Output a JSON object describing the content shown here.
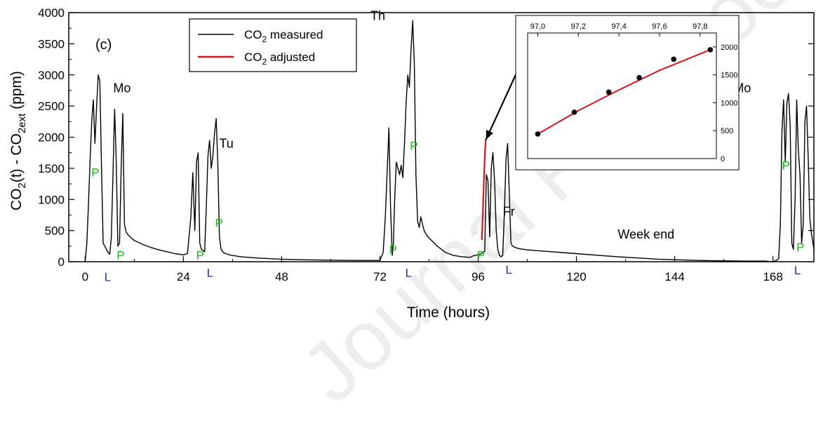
{
  "watermark": "Journal Pre-proof",
  "chart_data": [
    {
      "type": "line",
      "panel_label": "(c)",
      "xlabel": "Time (hours)",
      "ylabel_parts": [
        "CO",
        "2",
        "(t) - CO",
        "2ext",
        " (ppm)"
      ],
      "x_ticks": [
        0,
        24,
        48,
        72,
        96,
        120,
        144,
        168
      ],
      "y_ticks": [
        0,
        500,
        1000,
        1500,
        2000,
        2500,
        3000,
        3500,
        4000
      ],
      "xlim": [
        -4,
        178
      ],
      "ylim": [
        0,
        4000
      ],
      "legend": {
        "position": "top-center",
        "entries": [
          {
            "parts": [
              "CO",
              "2",
              " measured"
            ],
            "color": "#000000"
          },
          {
            "parts": [
              "CO",
              "2",
              " adjusted"
            ],
            "color": "#d4141e"
          }
        ]
      },
      "day_labels": [
        {
          "text": "Mo",
          "x": 9,
          "y": 2720
        },
        {
          "text": "Tu",
          "x": 34.5,
          "y": 1830
        },
        {
          "text": "Th",
          "x": 71.5,
          "y": 3880
        },
        {
          "text": "Fr",
          "x": 103.5,
          "y": 740
        },
        {
          "text": "Week end",
          "x": 137,
          "y": 370
        },
        {
          "text": "Mo",
          "x": 160.5,
          "y": 2720
        }
      ],
      "P_markers": [
        {
          "x": 2.5,
          "y": 1370
        },
        {
          "x": 8.7,
          "y": 40
        },
        {
          "x": 28.1,
          "y": 40
        },
        {
          "x": 32.7,
          "y": 560
        },
        {
          "x": 75.2,
          "y": 130
        },
        {
          "x": 80.3,
          "y": 1800
        },
        {
          "x": 96.7,
          "y": 40
        },
        {
          "x": 171.2,
          "y": 1480
        },
        {
          "x": 174.7,
          "y": 170
        }
      ],
      "L_markers": [
        {
          "x": 5.5,
          "y": -310
        },
        {
          "x": 30.5,
          "y": -240
        },
        {
          "x": 79,
          "y": -240
        },
        {
          "x": 103.5,
          "y": -190
        },
        {
          "x": 174,
          "y": -200
        }
      ],
      "marker_colors": {
        "P": "#21b021",
        "L": "#1f2ea0"
      },
      "series": [
        {
          "name": "CO2 measured",
          "color": "#000000",
          "x": [
            0,
            0.4,
            0.8,
            1.2,
            1.6,
            2.0,
            2.4,
            2.8,
            3.2,
            3.6,
            4.0,
            4.4,
            4.8,
            5.2,
            5.6,
            6.0,
            6.4,
            6.8,
            7.2,
            7.6,
            8.0,
            8.4,
            8.8,
            9.2,
            9.6,
            10,
            10.5,
            11,
            11.5,
            12,
            14,
            16,
            18,
            20,
            22,
            24,
            25,
            25.8,
            26.3,
            26.8,
            27.2,
            27.6,
            28.0,
            28.4,
            28.8,
            29.2,
            29.6,
            30.0,
            30.4,
            30.8,
            31.2,
            31.6,
            32.0,
            32.4,
            32.8,
            33.2,
            33.6,
            34.0,
            34.4,
            34.8,
            35.2,
            36,
            38,
            42,
            48,
            54,
            60,
            66,
            70,
            72,
            72.8,
            73.3,
            73.8,
            74.2,
            74.6,
            75.0,
            75.3,
            75.6,
            76.0,
            76.4,
            76.8,
            77.2,
            77.6,
            78.0,
            78.4,
            78.8,
            79.2,
            79.6,
            80.0,
            80.4,
            80.8,
            81.2,
            81.6,
            82.0,
            82.4,
            82.8,
            83.2,
            84,
            86,
            88,
            90,
            92,
            94,
            95,
            96,
            96.8,
            97.6,
            98.0,
            98.4,
            98.8,
            99.2,
            99.6,
            100.0,
            100.4,
            100.8,
            101.2,
            101.6,
            102.0,
            102.4,
            102.8,
            103.2,
            103.6,
            104.0,
            104.4,
            105,
            106,
            108,
            112,
            120,
            130,
            140,
            150,
            160,
            166,
            168,
            168.8,
            169.4,
            169.8,
            170.2,
            170.6,
            171.0,
            171.4,
            171.8,
            172.2,
            172.6,
            173.0,
            173.4,
            173.8,
            174.2,
            174.6,
            175.0,
            175.4,
            175.8,
            176.2,
            176.6,
            177.0,
            177.4,
            178
          ],
          "y": [
            0,
            280,
            900,
            1600,
            2250,
            2600,
            1900,
            2500,
            3000,
            2900,
            1500,
            300,
            250,
            200,
            150,
            120,
            400,
            1400,
            2450,
            1600,
            250,
            300,
            1500,
            2380,
            600,
            480,
            430,
            400,
            370,
            340,
            280,
            230,
            190,
            160,
            130,
            110,
            130,
            700,
            1430,
            500,
            1600,
            1750,
            300,
            200,
            180,
            160,
            900,
            1700,
            1950,
            1500,
            1700,
            2050,
            2300,
            1600,
            400,
            200,
            160,
            140,
            130,
            120,
            110,
            100,
            80,
            60,
            40,
            30,
            25,
            20,
            20,
            20,
            150,
            700,
            1500,
            2150,
            900,
            100,
            300,
            1000,
            1600,
            1500,
            1400,
            1550,
            1350,
            1900,
            2550,
            3000,
            2800,
            3400,
            3870,
            3200,
            1400,
            650,
            550,
            720,
            600,
            500,
            450,
            380,
            250,
            150,
            100,
            80,
            70,
            100,
            110,
            130,
            170,
            1400,
            1300,
            400,
            1500,
            1750,
            1300,
            500,
            200,
            100,
            80,
            100,
            800,
            1650,
            1900,
            1100,
            300,
            250,
            230,
            210,
            190,
            170,
            130,
            80,
            40,
            20,
            10,
            10,
            0,
            20,
            50,
            600,
            2100,
            2600,
            1600,
            2550,
            2700,
            2200,
            300,
            200,
            1000,
            2600,
            1800,
            1400,
            300,
            600,
            2250,
            2500,
            1700,
            700,
            450,
            200
          ]
        },
        {
          "name": "CO2 adjusted",
          "color": "#d4141e",
          "x": [
            96.9,
            97.1,
            97.3,
            97.5,
            97.7,
            97.85
          ],
          "y": [
            350,
            700,
            1100,
            1500,
            1800,
            1970
          ]
        }
      ],
      "annotation_arrow": {
        "from": {
          "x": 105.5,
          "y": 3050
        },
        "to": {
          "x": 97.9,
          "y": 1960
        }
      }
    },
    {
      "type": "line",
      "role": "inset",
      "x_ticks": [
        "97,0",
        "97,2",
        "97,4",
        "97,6",
        "97,8"
      ],
      "x_tick_values": [
        97.0,
        97.2,
        97.4,
        97.6,
        97.8
      ],
      "y_ticks": [
        0,
        500,
        1000,
        1500,
        2000
      ],
      "xlim": [
        96.95,
        97.88
      ],
      "ylim": [
        0,
        2250
      ],
      "points": {
        "x": [
          97.0,
          97.18,
          97.35,
          97.5,
          97.67,
          97.85
        ],
        "y": [
          440,
          830,
          1190,
          1450,
          1780,
          1950
        ],
        "color": "#000000"
      },
      "fit_line": {
        "x": [
          97.0,
          97.2,
          97.4,
          97.6,
          97.85
        ],
        "y": [
          440,
          860,
          1230,
          1580,
          1950
        ],
        "color": "#d4141e"
      }
    }
  ]
}
